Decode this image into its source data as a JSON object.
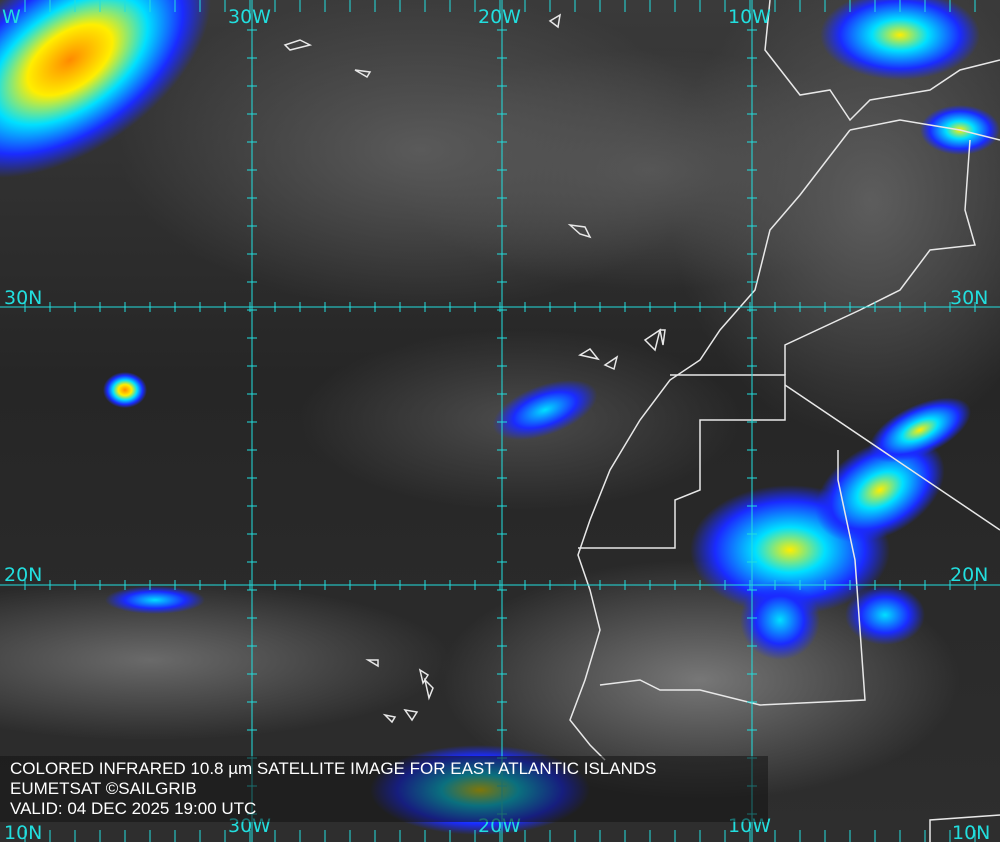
{
  "title": "COLORED INFRARED 10.8 µm SATELLITE IMAGE FOR EAST ATLANTIC ISLANDS",
  "credit": "EUMETSAT ©SAILGRIB",
  "valid": "VALID:  04 DEC 2025 19:00 UTC",
  "grid_labels": {
    "top": [
      "W",
      "30W",
      "20W",
      "10W"
    ],
    "left": [
      "30N",
      "20N",
      "10N"
    ],
    "right": [
      "30N",
      "20N",
      "10N"
    ],
    "bottom": [
      "30W",
      "20W",
      "10W"
    ]
  },
  "colors": {
    "grid": "#22dede",
    "coast": "#e8e8e8",
    "cloud_scale": [
      "#0000ff",
      "#00e5ff",
      "#ffff00",
      "#ff6600"
    ]
  }
}
